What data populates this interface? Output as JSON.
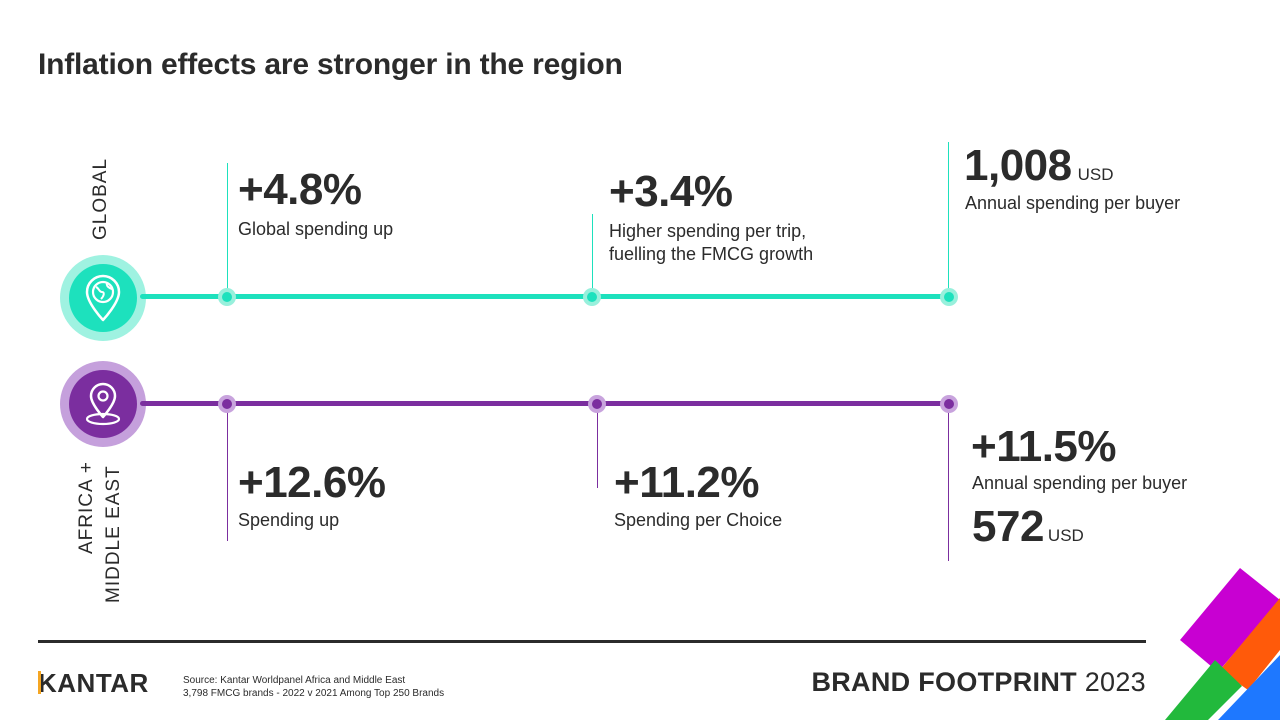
{
  "title": "Inflation effects are stronger in the region",
  "colors": {
    "global": "#1de1bd",
    "region": "#7b2e9f",
    "text": "#2b2b2b"
  },
  "global": {
    "label": "GLOBAL",
    "icon": "globe-pin-icon",
    "stats": [
      {
        "value": "+4.8%",
        "lines": [
          "Global spending up"
        ]
      },
      {
        "value": "+3.4%",
        "lines": [
          "Higher spending per trip,",
          "fuelling the FMCG growth"
        ]
      },
      {
        "value": "1,008",
        "unit": "USD",
        "lines": [
          "Annual spending per buyer"
        ]
      }
    ]
  },
  "region": {
    "label_line1": "AFRICA +",
    "label_line2": "MIDDLE EAST",
    "icon": "location-pin-icon",
    "stats": [
      {
        "value": "+12.6%",
        "lines": [
          "Spending up"
        ]
      },
      {
        "value": "+11.2%",
        "lines": [
          "Spending per Choice"
        ]
      },
      {
        "value": "+11.5%",
        "lines": [
          "Annual spending per buyer"
        ],
        "value2": "572",
        "unit2": "USD"
      }
    ]
  },
  "footer": {
    "logo": "KANTAR",
    "source_line1": "Source: Kantar Worldpanel Africa and Middle East",
    "source_line2": "3,798 FMCG brands - 2022 v 2021 Among Top 250 Brands",
    "brand_bold": "BRAND FOOTPRINT",
    "brand_year": "2023"
  }
}
